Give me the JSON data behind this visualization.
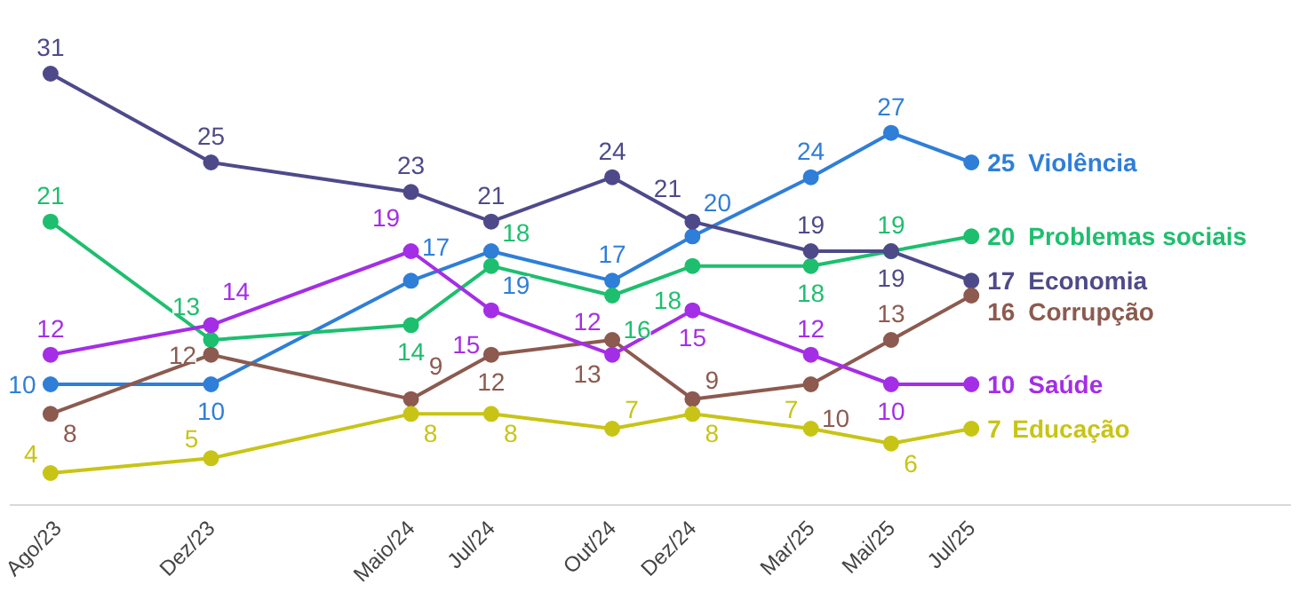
{
  "chart_data": {
    "type": "line",
    "x": [
      "2023-08",
      "2023-12",
      "2024-05",
      "2024-07",
      "2024-10",
      "2024-12",
      "2025-03",
      "2025-05",
      "2025-07"
    ],
    "xticks": [
      {
        "value": "2023-08",
        "label": "Ago/23"
      },
      {
        "value": "2023-12",
        "label": "Dez/23"
      },
      {
        "value": "2024-05",
        "label": "Maio/24"
      },
      {
        "value": "2024-07",
        "label": "Jul/24"
      },
      {
        "value": "2024-10",
        "label": "Out/24"
      },
      {
        "value": "2024-12",
        "label": "Dez/24"
      },
      {
        "value": "2025-03",
        "label": "Mar/25"
      },
      {
        "value": "2025-05",
        "label": "Mai/25"
      },
      {
        "value": "2025-07",
        "label": "Jul/25"
      }
    ],
    "series": [
      {
        "name": "Violência",
        "color": "#2f7ed8",
        "values": [
          10,
          10,
          17,
          19,
          17,
          20,
          24,
          27,
          25
        ]
      },
      {
        "name": "Problemas sociais",
        "color": "#1dbf6e",
        "values": [
          21,
          13,
          14,
          18,
          16,
          18,
          18,
          19,
          20
        ]
      },
      {
        "name": "Economia",
        "color": "#4e4a8a",
        "values": [
          31,
          25,
          23,
          21,
          24,
          21,
          19,
          19,
          17
        ]
      },
      {
        "name": "Corrupção",
        "color": "#8c5a4f",
        "values": [
          8,
          12,
          9,
          12,
          13,
          9,
          10,
          13,
          16
        ]
      },
      {
        "name": "Saúde",
        "color": "#a42ee6",
        "values": [
          12,
          14,
          19,
          15,
          12,
          15,
          12,
          10,
          10
        ]
      },
      {
        "name": "Educação",
        "color": "#c8c416",
        "values": [
          4,
          5,
          8,
          8,
          7,
          8,
          7,
          6,
          7
        ]
      }
    ],
    "xlim": [
      "2023-07",
      "2026-03"
    ],
    "data_labels": true,
    "marker": "circle",
    "line_style": "solid",
    "grid": false,
    "legend": false
  }
}
